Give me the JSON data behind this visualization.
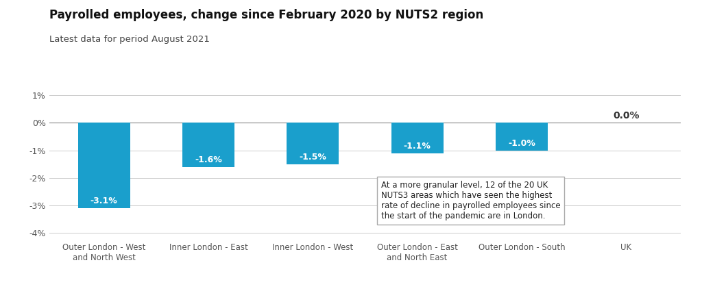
{
  "title": "Payrolled employees, change since February 2020 by NUTS2 region",
  "subtitle": "Latest data for period August 2021",
  "categories": [
    "Outer London - West\nand North West",
    "Inner London - East",
    "Inner London - West",
    "Outer London - East\nand North East",
    "Outer London - South",
    "UK"
  ],
  "values": [
    -3.1,
    -1.6,
    -1.5,
    -1.1,
    -1.0,
    0.0
  ],
  "bar_color": "#1a9fcc",
  "bar_labels": [
    "-3.1%",
    "-1.6%",
    "-1.5%",
    "-1.1%",
    "-1.0%",
    "0.0%"
  ],
  "ylim": [
    -4.2,
    1.5
  ],
  "yticks": [
    -4,
    -3,
    -2,
    -1,
    0,
    1
  ],
  "ytick_labels": [
    "-4%",
    "-3%",
    "-2%",
    "-1%",
    "0%",
    "1%"
  ],
  "background_color": "#ffffff",
  "title_fontsize": 12,
  "subtitle_fontsize": 9.5,
  "annotation_text": "At a more granular level, 12 of the 20 UK\nNUTS3 areas which have seen the highest\nrate of decline in payrolled employees since\nthe start of the pandemic are in London.",
  "grid_color": "#cccccc",
  "text_color": "#555555",
  "label_color_inside": "#ffffff",
  "label_color_outside": "#333333",
  "zero_line_color": "#888888",
  "bar_width": 0.5
}
